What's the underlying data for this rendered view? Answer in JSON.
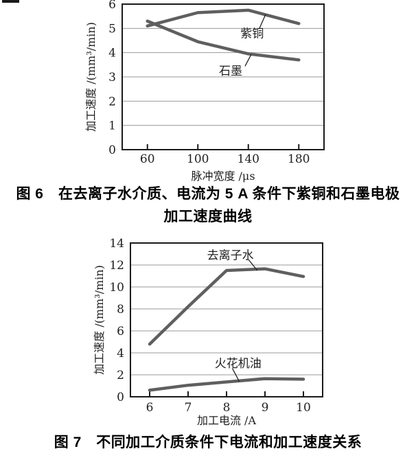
{
  "page": {
    "background": "#ffffff"
  },
  "colors": {
    "curve": "#5f5f5f",
    "grid": "#9a9a9a",
    "axis": "#1a1a1a",
    "leader": "#222222",
    "text": "#1f1f1f"
  },
  "figure6": {
    "caption_line1": "图 6　在去离子水介质、电流为 5 A 条件下紫铜和石墨电极",
    "caption_line2": "加工速度曲线"
  },
  "figure7": {
    "caption": "图 7　不同加工介质条件下电流和加工速度关系"
  },
  "chart_data": [
    {
      "type": "line",
      "title": "",
      "xlabel": "脉冲宽度 /μs",
      "ylabel": "加工速度 /(mm³/min)",
      "xlim": [
        40,
        200
      ],
      "ylim": [
        0,
        6
      ],
      "xticks": [
        60,
        100,
        140,
        180
      ],
      "yticks": [
        0,
        1,
        2,
        3,
        4,
        5,
        6
      ],
      "grid": "horizontal",
      "legend_position": "inline-annotations",
      "series": [
        {
          "name": "紫铜",
          "x": [
            60,
            100,
            140,
            180
          ],
          "y": [
            5.1,
            5.65,
            5.75,
            5.2
          ]
        },
        {
          "name": "石墨",
          "x": [
            60,
            100,
            140,
            180
          ],
          "y": [
            5.3,
            4.45,
            3.95,
            3.7
          ]
        }
      ],
      "annotations": [
        {
          "text": "紫铜",
          "x": 143,
          "y": 4.8,
          "leader": {
            "x1": 148.8,
            "y1": 5.0,
            "x2": 153.7,
            "y2": 5.58
          }
        },
        {
          "text": "石墨",
          "x": 126,
          "y": 3.25,
          "leader": {
            "x1": 137.4,
            "y1": 3.44,
            "x2": 142.3,
            "y2": 3.93
          }
        }
      ]
    },
    {
      "type": "line",
      "title": "",
      "xlabel": "加工电流 /A",
      "ylabel": "加工速度 /(mm³/min)",
      "xlim": [
        5.5,
        10.5
      ],
      "ylim": [
        0,
        14
      ],
      "xticks": [
        6,
        7,
        8,
        9,
        10
      ],
      "yticks": [
        0,
        2,
        4,
        6,
        8,
        10,
        12,
        14
      ],
      "grid": "horizontal",
      "legend_position": "inline-annotations",
      "series": [
        {
          "name": "去离子水",
          "x": [
            6,
            7,
            8,
            9,
            10
          ],
          "y": [
            4.8,
            8.2,
            11.5,
            11.65,
            10.95
          ]
        },
        {
          "name": "火花机油",
          "x": [
            6,
            7,
            8,
            9,
            10
          ],
          "y": [
            0.6,
            1.05,
            1.35,
            1.65,
            1.6
          ]
        }
      ],
      "annotations": [
        {
          "text": "去离子水",
          "x": 8.1,
          "y": 12.9,
          "leader": {
            "x1": 8.57,
            "y1": 12.5,
            "x2": 8.8,
            "y2": 11.5
          }
        },
        {
          "text": "火花机油",
          "x": 8.3,
          "y": 3.05,
          "leader": {
            "x1": 8.15,
            "y1": 2.6,
            "x2": 8.33,
            "y2": 1.4
          }
        }
      ]
    }
  ]
}
